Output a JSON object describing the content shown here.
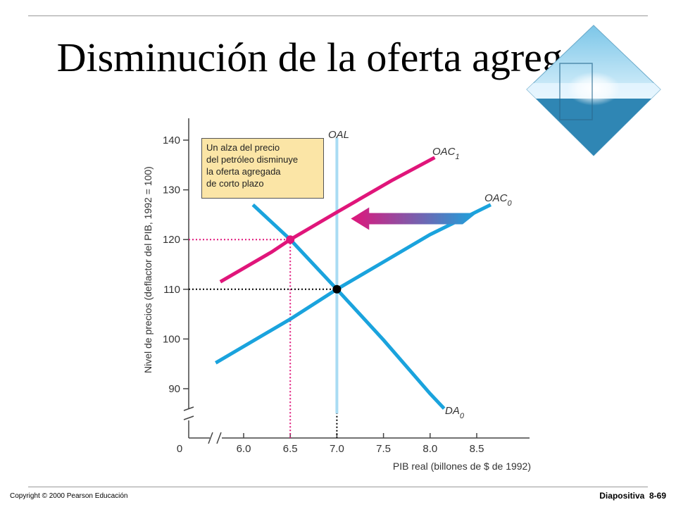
{
  "slide": {
    "title": "Disminución de la oferta agregada",
    "copyright": "Copyright © 2000 Pearson Educación",
    "slide_label": "Diapositiva",
    "slide_number": "8-69"
  },
  "chart_data": {
    "type": "line",
    "xlabel": "PIB real (billones de $ de 1992)",
    "ylabel": "Nivel de precios (deflactor del PIB, 1992 = 100)",
    "x_ticks": [
      "6.0",
      "6.5",
      "7.0",
      "7.5",
      "8.0",
      "8.5"
    ],
    "y_ticks": [
      "90",
      "100",
      "110",
      "120",
      "130",
      "140"
    ],
    "origin_label": "0",
    "xlim": [
      5.6,
      9.0
    ],
    "ylim": [
      85,
      143
    ],
    "series": [
      {
        "name": "OAC",
        "subscript": "1",
        "color": "#e0157a",
        "points": [
          [
            5.75,
            111.5
          ],
          [
            6.3,
            117.5
          ],
          [
            6.5,
            120
          ],
          [
            7.0,
            125.5
          ],
          [
            7.6,
            132
          ],
          [
            8.05,
            136.5
          ]
        ]
      },
      {
        "name": "OAC",
        "subscript": "0",
        "color": "#1aa3dd",
        "points": [
          [
            5.7,
            95.2
          ],
          [
            6.5,
            104
          ],
          [
            7.0,
            110
          ],
          [
            7.5,
            115.5
          ],
          [
            8.0,
            121
          ],
          [
            8.65,
            127
          ]
        ]
      },
      {
        "name": "DA",
        "subscript": "0",
        "color": "#1aa3dd",
        "points": [
          [
            6.1,
            127
          ],
          [
            6.5,
            120
          ],
          [
            7.0,
            110
          ],
          [
            7.5,
            99.8
          ],
          [
            8.0,
            89
          ],
          [
            8.15,
            86
          ]
        ]
      },
      {
        "name": "OAL",
        "color": "#a9dcf3",
        "points": [
          [
            7.0,
            85
          ],
          [
            7.0,
            140.5
          ]
        ]
      }
    ],
    "equilibria": [
      {
        "x": 7.0,
        "y": 110,
        "color": "#000000",
        "x_tick_color": "#333333",
        "y_tick_color": "#333333"
      },
      {
        "x": 6.5,
        "y": 120,
        "color": "#e0157a",
        "x_tick_color": "#e0157a",
        "y_tick_color": "#e0157a"
      }
    ],
    "annotation": {
      "lines": [
        "Un alza del precio",
        "del petróleo disminuye",
        "la oferta agregada",
        "de corto plazo"
      ]
    },
    "shift_arrow": {
      "direction": "left",
      "from_color": "#1aa3dd",
      "to_color": "#e0157a"
    },
    "axis_break": true
  }
}
